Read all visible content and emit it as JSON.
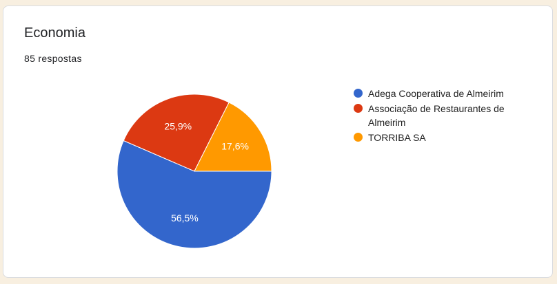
{
  "card": {
    "title": "Economia",
    "responses": "85 respostas"
  },
  "chart_data": {
    "type": "pie",
    "categories": [
      "Adega Cooperativa de Almeirim",
      "Associação de Restaurantes de Almeirim",
      "TORRIBA SA"
    ],
    "values": [
      56.5,
      25.9,
      17.6
    ],
    "labels": [
      "56,5%",
      "25,9%",
      "17,6%"
    ],
    "colors": [
      "#3366cc",
      "#dc3912",
      "#ff9900"
    ],
    "legend_position": "right"
  }
}
